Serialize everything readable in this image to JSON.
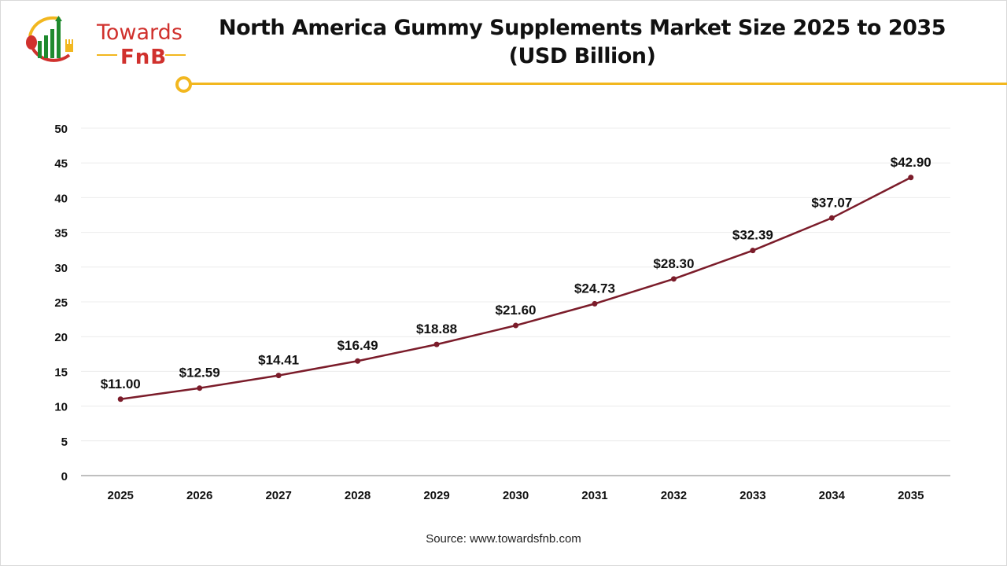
{
  "logo": {
    "line1": "Towards",
    "line2": "FnB"
  },
  "colors": {
    "line": "#7b1c2a",
    "accent": "#f2b71f",
    "logo_red": "#d0312d",
    "logo_green": "#1f8a2e"
  },
  "chart_data": {
    "type": "line",
    "title": "North America Gummy Supplements Market Size 2025 to 2035 (USD Billion)",
    "title_lines": [
      "North America Gummy Supplements Market Size 2025 to 2035",
      "(USD Billion)"
    ],
    "categories": [
      "2025",
      "2026",
      "2027",
      "2028",
      "2029",
      "2030",
      "2031",
      "2032",
      "2033",
      "2034",
      "2035"
    ],
    "values": [
      11.0,
      12.59,
      14.41,
      16.49,
      18.88,
      21.6,
      24.73,
      28.3,
      32.39,
      37.07,
      42.9
    ],
    "data_labels": [
      "$11.00",
      "$12.59",
      "$14.41",
      "$16.49",
      "$18.88",
      "$21.60",
      "$24.73",
      "$28.30",
      "$32.39",
      "$37.07",
      "$42.90"
    ],
    "ylim": [
      0,
      50
    ],
    "yticks": [
      "0",
      "5",
      "10",
      "15",
      "20",
      "25",
      "30",
      "35",
      "40",
      "45",
      "50"
    ],
    "grid": true,
    "xlabel": "",
    "ylabel": ""
  },
  "source": "Source: www.towardsfnb.com"
}
